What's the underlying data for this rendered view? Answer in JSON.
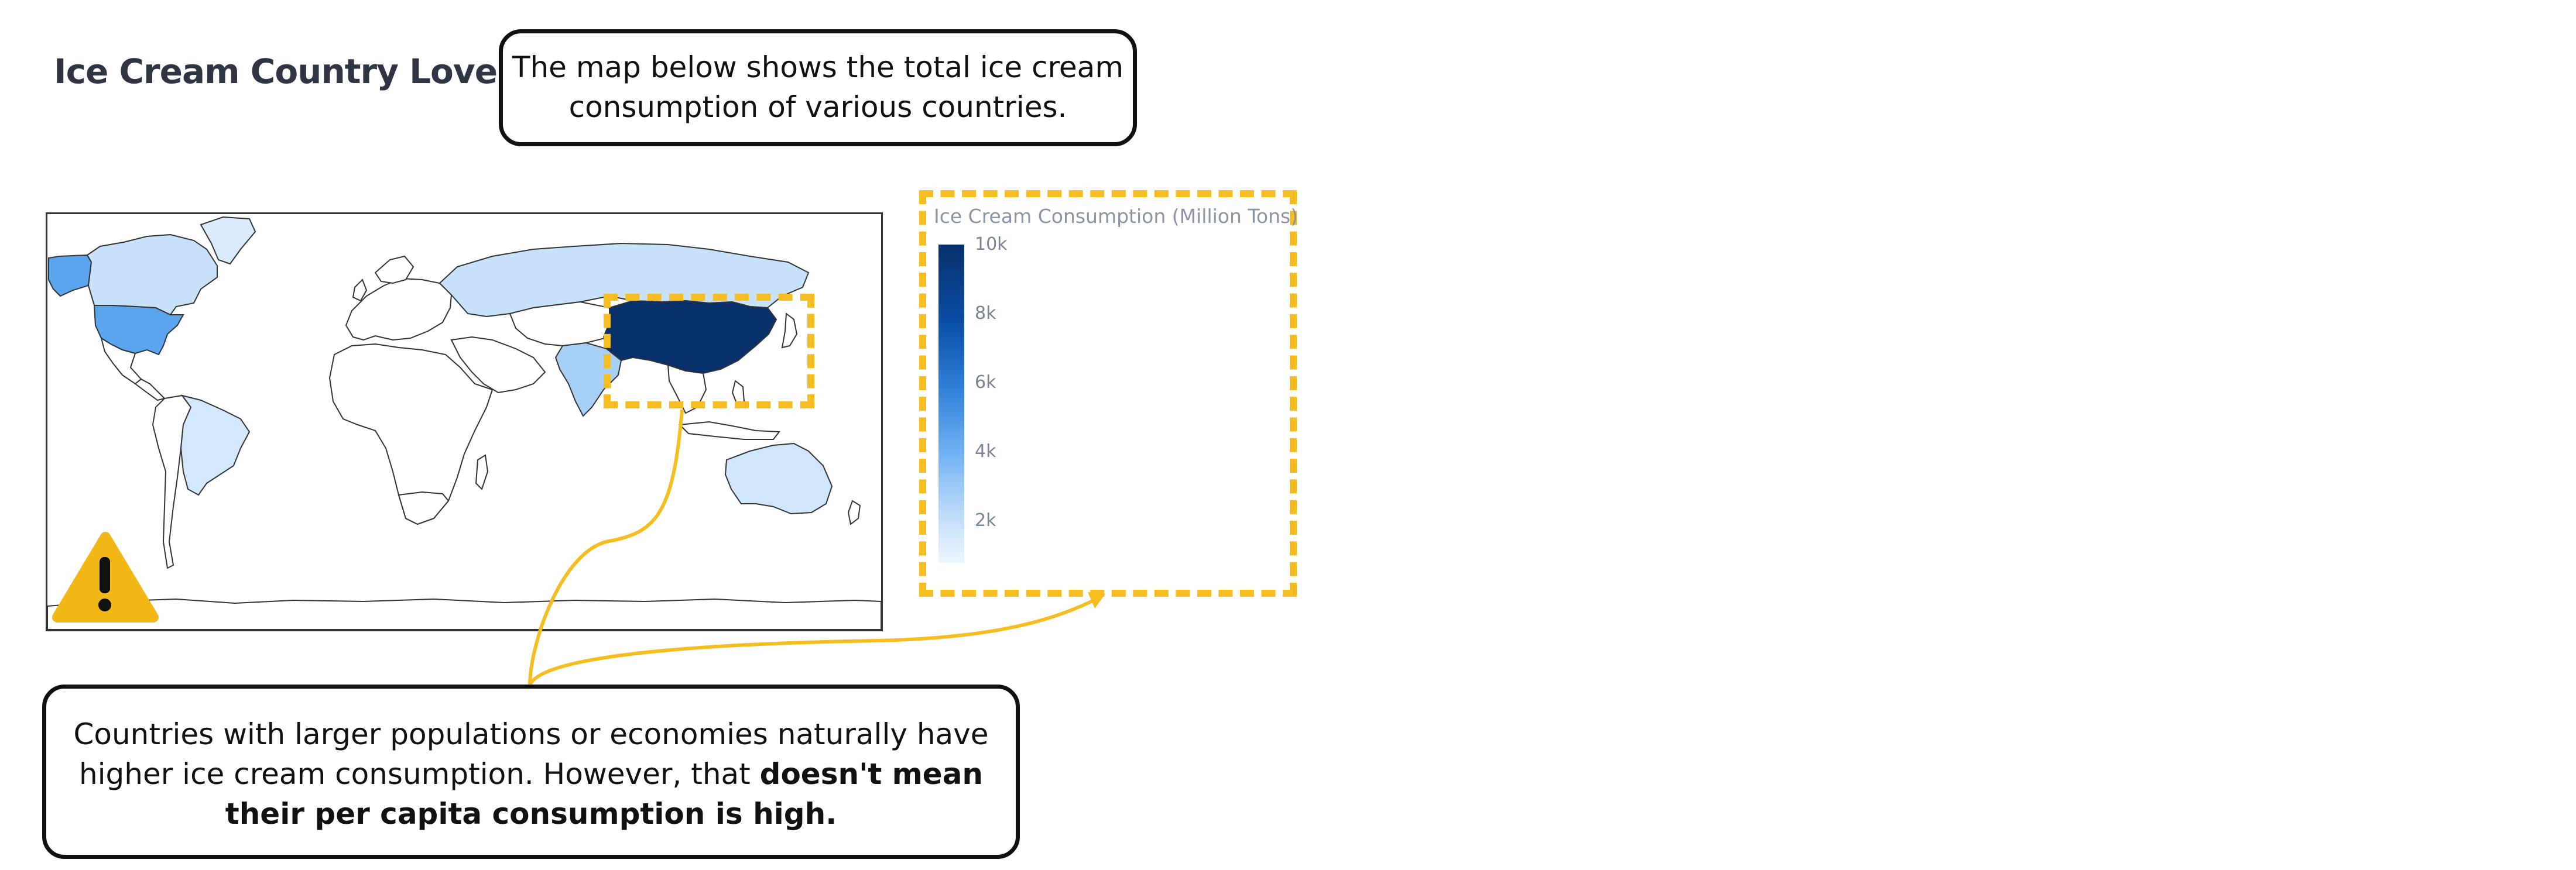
{
  "header": {
    "title": "Ice Cream Country Lovers"
  },
  "callouts": {
    "top_text": "The map below shows the total ice cream consumption of various countries.",
    "bottom_text_plain": "Countries with larger populations or economies naturally have higher ice cream consumption. However, that ",
    "bottom_text_bold": "doesn't mean their per capita consumption is high."
  },
  "legend": {
    "title": "Ice Cream Consumption (Million Tons)",
    "ticks": [
      "10k",
      "8k",
      "6k",
      "4k",
      "2k"
    ],
    "colorscale": [
      "#eef6ff",
      "#bfdcfa",
      "#6fb0f2",
      "#2f7fd9",
      "#0b4fa8",
      "#08306b"
    ]
  },
  "map": {
    "highlighted_region": "China",
    "colors": {
      "china": "#08306b",
      "usa": "#5aa5ee",
      "canada": "#c9e2fb",
      "russia": "#c9e2fb",
      "india": "#a8cff6",
      "brazil": "#d3e8fc",
      "australia": "#cfe6fc",
      "greenland": "#d9ebfd",
      "alaska": "#5aa5ee",
      "default": "#ffffff"
    }
  },
  "warning": {
    "icon": "warning-icon"
  },
  "accent": "#f5bd1f"
}
